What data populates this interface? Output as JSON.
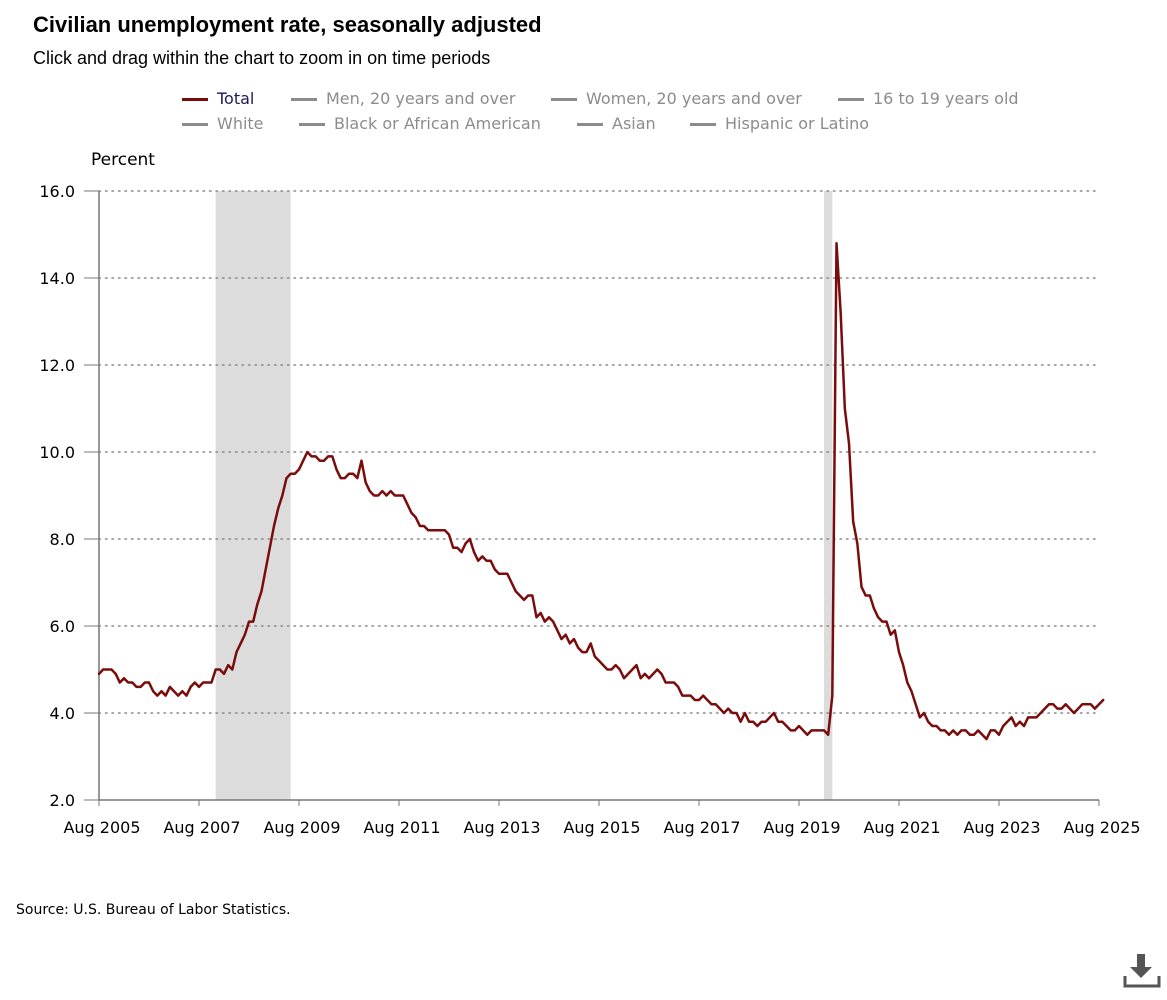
{
  "header": {
    "title": "Civilian unemployment rate, seasonally adjusted",
    "subtitle": "Click and drag within the chart to zoom in on time periods"
  },
  "legend": {
    "row1": [
      {
        "label": "Total",
        "color": "#7a0c0c",
        "text_color": "#1a1a5e",
        "active": true
      },
      {
        "label": "Men, 20 years and over",
        "color": "#8c8c8c",
        "text_color": "#8c8c8c",
        "active": false
      },
      {
        "label": "Women, 20 years and over",
        "color": "#8c8c8c",
        "text_color": "#8c8c8c",
        "active": false
      },
      {
        "label": "16 to 19 years old",
        "color": "#8c8c8c",
        "text_color": "#8c8c8c",
        "active": false
      }
    ],
    "row2": [
      {
        "label": "White",
        "color": "#8c8c8c",
        "text_color": "#8c8c8c",
        "active": false
      },
      {
        "label": "Black or African American",
        "color": "#8c8c8c",
        "text_color": "#8c8c8c",
        "active": false
      },
      {
        "label": "Asian",
        "color": "#8c8c8c",
        "text_color": "#8c8c8c",
        "active": false
      },
      {
        "label": "Hispanic or Latino",
        "color": "#8c8c8c",
        "text_color": "#8c8c8c",
        "active": false
      }
    ]
  },
  "footer": {
    "source": "Source: U.S. Bureau of Labor Statistics.",
    "download_icon": "download-icon"
  },
  "chart_data": {
    "type": "line",
    "title": "Civilian unemployment rate, seasonally adjusted",
    "ylabel": "Percent",
    "xlabel": "",
    "ylim": [
      2.0,
      16.0
    ],
    "yticks": [
      "2.0",
      "4.0",
      "6.0",
      "8.0",
      "10.0",
      "12.0",
      "14.0",
      "16.0"
    ],
    "xticks": [
      "Aug 2005",
      "Aug 2007",
      "Aug 2009",
      "Aug 2011",
      "Aug 2013",
      "Aug 2015",
      "Aug 2017",
      "Aug 2019",
      "Aug 2021",
      "Aug 2023",
      "Aug 2025"
    ],
    "x_start": "Aug 2005",
    "x_end": "Aug 2025",
    "recessions": [
      {
        "start": "Dec 2007",
        "end": "Jun 2009"
      },
      {
        "start": "Feb 2020",
        "end": "Apr 2020"
      }
    ],
    "series": [
      {
        "name": "Total",
        "color": "#7a0c0c",
        "start": "Aug 2005",
        "values": [
          4.9,
          5.0,
          5.0,
          5.0,
          4.9,
          4.7,
          4.8,
          4.7,
          4.7,
          4.6,
          4.6,
          4.7,
          4.7,
          4.5,
          4.4,
          4.5,
          4.4,
          4.6,
          4.5,
          4.4,
          4.5,
          4.4,
          4.6,
          4.7,
          4.6,
          4.7,
          4.7,
          4.7,
          5.0,
          5.0,
          4.9,
          5.1,
          5.0,
          5.4,
          5.6,
          5.8,
          6.1,
          6.1,
          6.5,
          6.8,
          7.3,
          7.8,
          8.3,
          8.7,
          9.0,
          9.4,
          9.5,
          9.5,
          9.6,
          9.8,
          10.0,
          9.9,
          9.9,
          9.8,
          9.8,
          9.9,
          9.9,
          9.6,
          9.4,
          9.4,
          9.5,
          9.5,
          9.4,
          9.8,
          9.3,
          9.1,
          9.0,
          9.0,
          9.1,
          9.0,
          9.1,
          9.0,
          9.0,
          9.0,
          8.8,
          8.6,
          8.5,
          8.3,
          8.3,
          8.2,
          8.2,
          8.2,
          8.2,
          8.2,
          8.1,
          7.8,
          7.8,
          7.7,
          7.9,
          8.0,
          7.7,
          7.5,
          7.6,
          7.5,
          7.5,
          7.3,
          7.2,
          7.2,
          7.2,
          7.0,
          6.8,
          6.7,
          6.6,
          6.7,
          6.7,
          6.2,
          6.3,
          6.1,
          6.2,
          6.1,
          5.9,
          5.7,
          5.8,
          5.6,
          5.7,
          5.5,
          5.4,
          5.4,
          5.6,
          5.3,
          5.2,
          5.1,
          5.0,
          5.0,
          5.1,
          5.0,
          4.8,
          4.9,
          5.0,
          5.1,
          4.8,
          4.9,
          4.8,
          4.9,
          5.0,
          4.9,
          4.7,
          4.7,
          4.7,
          4.6,
          4.4,
          4.4,
          4.4,
          4.3,
          4.3,
          4.4,
          4.3,
          4.2,
          4.2,
          4.1,
          4.0,
          4.1,
          4.0,
          4.0,
          3.8,
          4.0,
          3.8,
          3.8,
          3.7,
          3.8,
          3.8,
          3.9,
          4.0,
          3.8,
          3.8,
          3.7,
          3.6,
          3.6,
          3.7,
          3.6,
          3.5,
          3.6,
          3.6,
          3.6,
          3.6,
          3.5,
          4.4,
          14.8,
          13.2,
          11.0,
          10.2,
          8.4,
          7.9,
          6.9,
          6.7,
          6.7,
          6.4,
          6.2,
          6.1,
          6.1,
          5.8,
          5.9,
          5.4,
          5.1,
          4.7,
          4.5,
          4.2,
          3.9,
          4.0,
          3.8,
          3.7,
          3.7,
          3.6,
          3.6,
          3.5,
          3.6,
          3.5,
          3.6,
          3.6,
          3.5,
          3.5,
          3.6,
          3.5,
          3.4,
          3.6,
          3.6,
          3.5,
          3.7,
          3.8,
          3.9,
          3.7,
          3.8,
          3.7,
          3.9,
          3.9,
          3.9,
          4.0,
          4.1,
          4.2,
          4.2,
          4.1,
          4.1,
          4.2,
          4.1,
          4.0,
          4.1,
          4.2,
          4.2,
          4.2,
          4.1,
          4.2,
          4.3
        ]
      }
    ]
  }
}
